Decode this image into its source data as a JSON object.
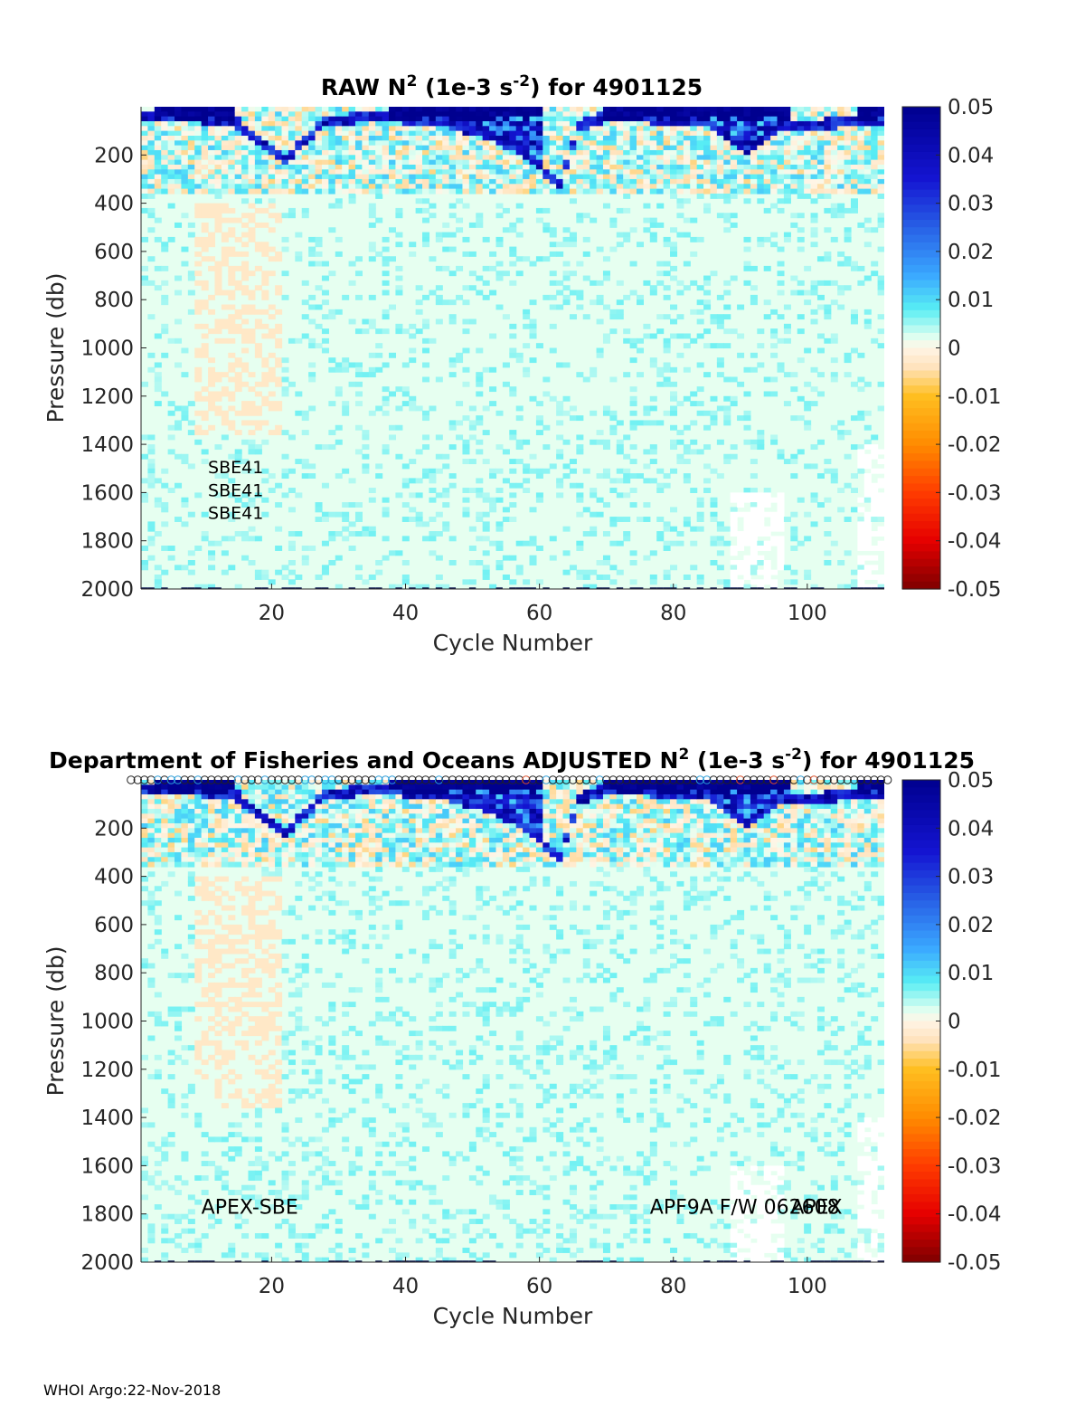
{
  "footer": "WHOI Argo:22-Nov-2018",
  "colormap": {
    "stops": [
      {
        "v": -0.05,
        "c": "#7f0000"
      },
      {
        "v": -0.04,
        "c": "#e60000"
      },
      {
        "v": -0.03,
        "c": "#ff3c00"
      },
      {
        "v": -0.02,
        "c": "#ff8c00"
      },
      {
        "v": -0.01,
        "c": "#ffbf20"
      },
      {
        "v": -0.004,
        "c": "#ffe3bd"
      },
      {
        "v": 0,
        "c": "#fff5e6"
      },
      {
        "v": 0.002,
        "c": "#e6fff0"
      },
      {
        "v": 0.008,
        "c": "#58eef4"
      },
      {
        "v": 0.015,
        "c": "#3aa8ff"
      },
      {
        "v": 0.025,
        "c": "#2860e6"
      },
      {
        "v": 0.035,
        "c": "#1414d2"
      },
      {
        "v": 0.05,
        "c": "#00008f"
      }
    ]
  },
  "chart_data": [
    {
      "type": "heatmap",
      "title_main": "RAW N",
      "title_sup1": "2",
      "title_mid": " (1e-3 s",
      "title_sup2": "-2",
      "title_end": ") for 4901125",
      "xlabel": "Cycle Number",
      "ylabel": "Pressure (db)",
      "xlim": [
        1,
        111
      ],
      "ylim": [
        2000,
        0
      ],
      "xticks": [
        "20",
        "40",
        "60",
        "80",
        "100"
      ],
      "xtick_values": [
        20,
        40,
        60,
        80,
        100
      ],
      "yticks": [
        "200",
        "400",
        "600",
        "800",
        "1000",
        "1200",
        "1400",
        "1600",
        "1800",
        "2000"
      ],
      "ytick_values": [
        200,
        400,
        600,
        800,
        1000,
        1200,
        1400,
        1600,
        1800,
        2000
      ],
      "clim": [
        -0.05,
        0.05
      ],
      "colorbar_ticks": [
        "0.05",
        "0.04",
        "0.03",
        "0.02",
        "0.01",
        "0",
        "-0.01",
        "-0.02",
        "-0.03",
        "-0.04",
        "-0.05"
      ],
      "colorbar_values": [
        0.05,
        0.04,
        0.03,
        0.02,
        0.01,
        0,
        -0.01,
        -0.02,
        -0.03,
        -0.04,
        -0.05
      ],
      "annotations": [
        "SBE41",
        "SBE41",
        "SBE41"
      ],
      "annotation_positions": [
        {
          "x": 11,
          "y": 1520
        },
        {
          "x": 11,
          "y": 1615
        },
        {
          "x": 11,
          "y": 1710
        }
      ],
      "qc_markers": false,
      "features": {
        "mixed_layer_depth": [
          [
            1,
            40
          ],
          [
            8,
            40
          ],
          [
            15,
            70
          ],
          [
            19,
            160
          ],
          [
            22,
            220
          ],
          [
            28,
            60
          ],
          [
            36,
            40
          ],
          [
            45,
            60
          ],
          [
            53,
            120
          ],
          [
            58,
            200
          ],
          [
            63,
            320
          ],
          [
            66,
            80
          ],
          [
            70,
            40
          ],
          [
            85,
            60
          ],
          [
            91,
            180
          ],
          [
            96,
            80
          ],
          [
            111,
            60
          ]
        ],
        "strong_band": [
          [
            3,
            14
          ],
          [
            38,
            60
          ],
          [
            70,
            97
          ],
          [
            108,
            111
          ]
        ],
        "negative_patch": {
          "cycles": [
            9,
            21
          ],
          "pressure": [
            400,
            1350
          ]
        },
        "missing_deep": [
          {
            "cycles": [
              89,
              96
            ],
            "pressure": [
              1600,
              2000
            ]
          },
          {
            "cycles": [
              108,
              111
            ],
            "pressure": [
              1400,
              2000
            ]
          }
        ]
      }
    },
    {
      "type": "heatmap",
      "title_main": "Department of Fisheries and Oceans  ADJUSTED N",
      "title_sup1": "2",
      "title_mid": " (1e-3 s",
      "title_sup2": "-2",
      "title_end": ") for 4901125",
      "xlabel": "Cycle Number",
      "ylabel": "Pressure (db)",
      "xlim": [
        1,
        111
      ],
      "ylim": [
        2000,
        0
      ],
      "xticks": [
        "20",
        "40",
        "60",
        "80",
        "100"
      ],
      "xtick_values": [
        20,
        40,
        60,
        80,
        100
      ],
      "yticks": [
        "200",
        "400",
        "600",
        "800",
        "1000",
        "1200",
        "1400",
        "1600",
        "1800",
        "2000"
      ],
      "ytick_values": [
        200,
        400,
        600,
        800,
        1000,
        1200,
        1400,
        1600,
        1800,
        2000
      ],
      "clim": [
        -0.05,
        0.05
      ],
      "colorbar_ticks": [
        "0.05",
        "0.04",
        "0.03",
        "0.02",
        "0.01",
        "0",
        "-0.01",
        "-0.02",
        "-0.03",
        "-0.04",
        "-0.05"
      ],
      "colorbar_values": [
        0.05,
        0.04,
        0.03,
        0.02,
        0.01,
        0,
        -0.01,
        -0.02,
        -0.03,
        -0.04,
        -0.05
      ],
      "annotations": [
        "APEX-SBE",
        "APF9A F/W 062608",
        "APEX"
      ],
      "annotation_positions": [
        {
          "x": 10,
          "y": 1800
        },
        {
          "x": 77,
          "y": 1800
        },
        {
          "x": 98,
          "y": 1800
        }
      ],
      "qc_markers": true,
      "features": {
        "mixed_layer_depth": [
          [
            1,
            40
          ],
          [
            8,
            40
          ],
          [
            15,
            70
          ],
          [
            19,
            160
          ],
          [
            22,
            220
          ],
          [
            28,
            60
          ],
          [
            36,
            40
          ],
          [
            45,
            60
          ],
          [
            53,
            120
          ],
          [
            58,
            200
          ],
          [
            63,
            320
          ],
          [
            66,
            80
          ],
          [
            70,
            40
          ],
          [
            85,
            60
          ],
          [
            91,
            180
          ],
          [
            96,
            80
          ],
          [
            111,
            60
          ]
        ],
        "strong_band": [
          [
            3,
            14
          ],
          [
            38,
            60
          ],
          [
            70,
            97
          ],
          [
            108,
            111
          ]
        ],
        "negative_patch": {
          "cycles": [
            9,
            21
          ],
          "pressure": [
            400,
            1350
          ]
        },
        "missing_deep": [
          {
            "cycles": [
              89,
              96
            ],
            "pressure": [
              1600,
              2000
            ]
          },
          {
            "cycles": [
              108,
              111
            ],
            "pressure": [
              1400,
              2000
            ]
          }
        ]
      }
    }
  ]
}
